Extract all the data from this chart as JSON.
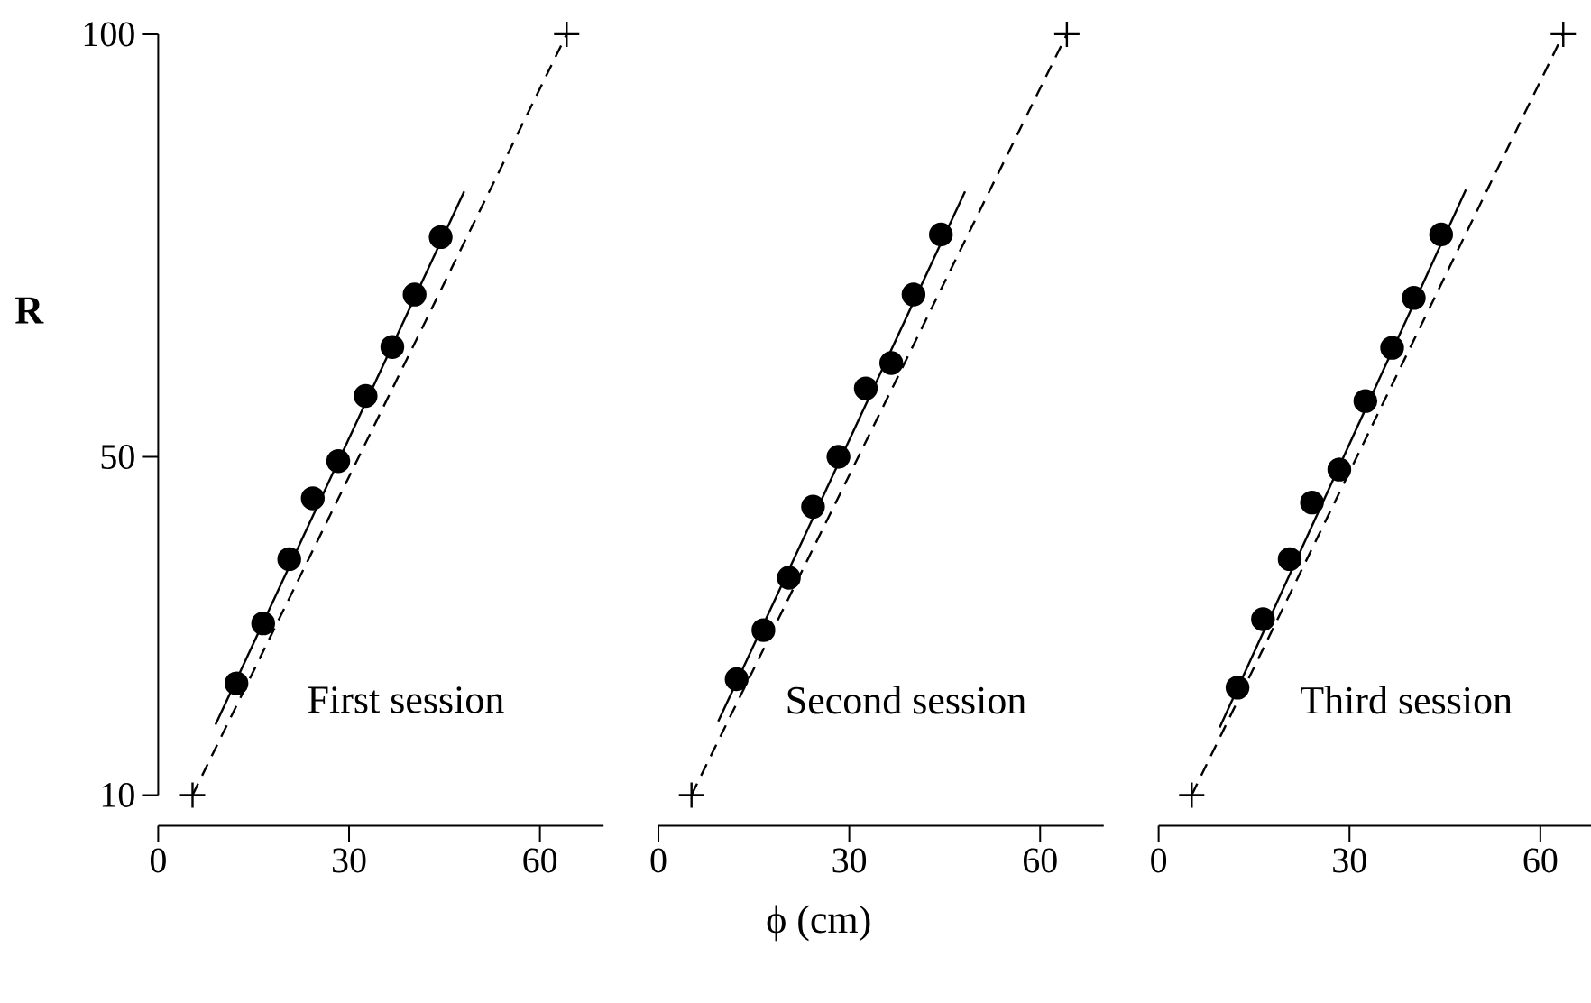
{
  "chart_data": [
    {
      "type": "scatter",
      "ylabel": "R",
      "xlim": [
        0,
        70
      ],
      "xticks": [
        0,
        30,
        60
      ],
      "ylim": [
        10,
        100
      ],
      "yticks": [
        10,
        50,
        100
      ],
      "annotations": [
        "First session"
      ],
      "series": [
        {
          "color": "#000000",
          "marker": "circle",
          "x": [
            12.3,
            16.5,
            20.6,
            24.3,
            28.3,
            32.6,
            36.8,
            40.3,
            44.4
          ],
          "values": [
            23.2,
            30.3,
            37.9,
            45.1,
            49.5,
            57.2,
            63.0,
            69.2,
            76.0
          ]
        },
        {
          "type": "line",
          "color": "#000000",
          "marker": "none",
          "line_style": "solid",
          "x": [
            9.0,
            48.1
          ],
          "values": [
            18.3,
            81.4
          ]
        },
        {
          "type": "line",
          "color": "#000000",
          "marker": "cross",
          "line_style": "dashed",
          "x": [
            5.4,
            64.2
          ],
          "values": [
            10,
            100
          ]
        }
      ]
    },
    {
      "type": "scatter",
      "xlabel": "ϕ  (cm)",
      "xlim": [
        0,
        70
      ],
      "xticks": [
        0,
        30,
        60
      ],
      "ylim": [
        10,
        100
      ],
      "tick_labels": "x",
      "annotations": [
        "Second session"
      ],
      "series": [
        {
          "color": "#000000",
          "marker": "circle",
          "x": [
            12.3,
            16.5,
            20.5,
            24.3,
            28.3,
            32.6,
            36.6,
            40.1,
            44.4
          ],
          "values": [
            23.7,
            29.5,
            35.7,
            44.1,
            50.0,
            58.1,
            61.1,
            69.2,
            76.3
          ]
        },
        {
          "type": "line",
          "color": "#000000",
          "marker": "none",
          "line_style": "solid",
          "x": [
            9.4,
            48.2
          ],
          "values": [
            18.7,
            81.4
          ]
        },
        {
          "type": "line",
          "color": "#000000",
          "marker": "cross",
          "line_style": "dashed",
          "x": [
            5.2,
            64.2
          ],
          "values": [
            10,
            100
          ]
        }
      ]
    },
    {
      "type": "scatter",
      "xlim": [
        0,
        70
      ],
      "xticks": [
        0,
        30,
        60
      ],
      "ylim": [
        10,
        100
      ],
      "tick_labels": "x",
      "annotations": [
        "Third session"
      ],
      "series": [
        {
          "color": "#000000",
          "marker": "circle",
          "x": [
            12.4,
            16.4,
            20.6,
            24.1,
            28.4,
            32.5,
            36.7,
            40.1,
            44.4
          ],
          "values": [
            22.7,
            30.8,
            37.9,
            44.6,
            48.5,
            56.6,
            62.9,
            68.8,
            76.3
          ]
        },
        {
          "type": "line",
          "color": "#000000",
          "marker": "none",
          "line_style": "solid",
          "x": [
            9.6,
            48.3
          ],
          "values": [
            18.0,
            81.6
          ]
        },
        {
          "type": "line",
          "color": "#000000",
          "marker": "cross",
          "line_style": "dashed",
          "x": [
            5.2,
            63.6
          ],
          "values": [
            10,
            100
          ]
        }
      ]
    }
  ]
}
